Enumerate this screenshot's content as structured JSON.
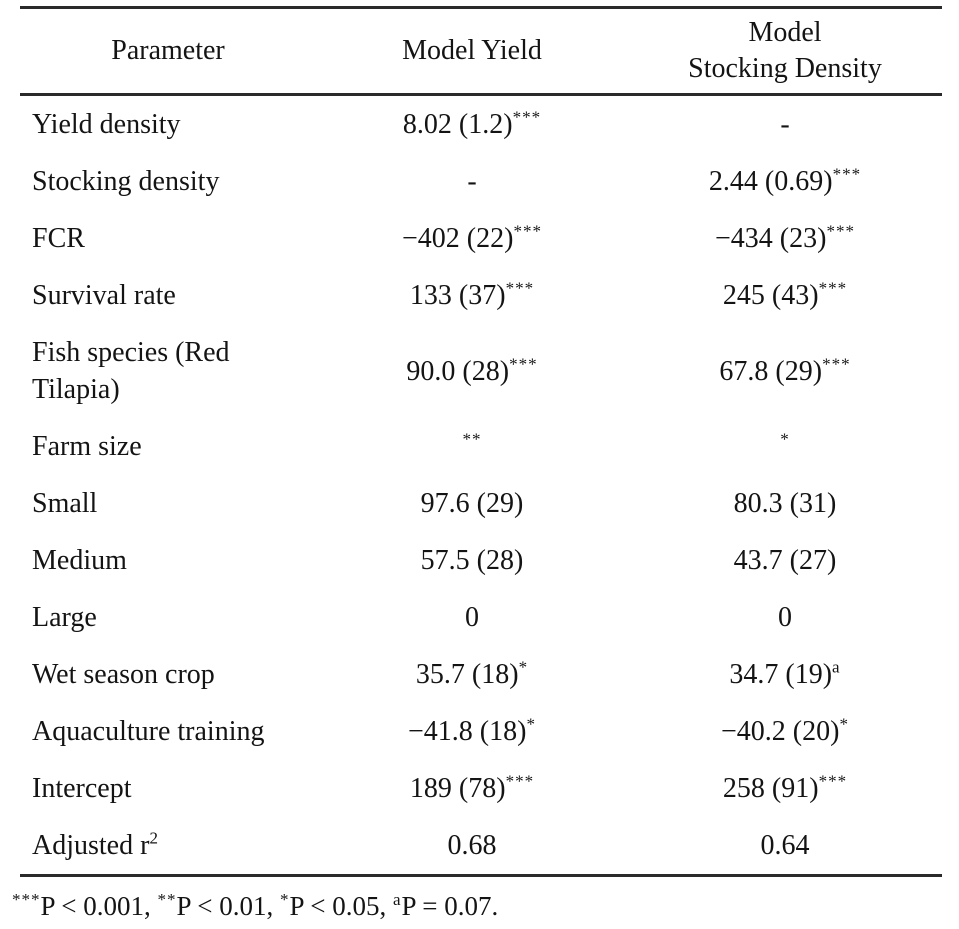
{
  "page": {
    "background": "#ffffff",
    "text_color": "#141414",
    "rule_color": "#2a2a2a"
  },
  "table": {
    "header": {
      "col1": "Parameter",
      "col2": "Model Yield",
      "col3_line1": "Model",
      "col3_line2": "Stocking Density"
    },
    "rows": [
      {
        "param": {
          "text": "Yield density",
          "sup": ""
        },
        "model_yield": {
          "text": "8.02 (1.2)",
          "sup": "***"
        },
        "model_stocking": {
          "text": "-",
          "sup": ""
        }
      },
      {
        "param": {
          "text": "Stocking density",
          "sup": ""
        },
        "model_yield": {
          "text": "-",
          "sup": ""
        },
        "model_stocking": {
          "text": "2.44 (0.69)",
          "sup": "***"
        }
      },
      {
        "param": {
          "text": "FCR",
          "sup": ""
        },
        "model_yield": {
          "text": "−402 (22)",
          "sup": "***"
        },
        "model_stocking": {
          "text": "−434 (23)",
          "sup": "***"
        }
      },
      {
        "param": {
          "text": "Survival rate",
          "sup": ""
        },
        "model_yield": {
          "text": "133 (37)",
          "sup": "***"
        },
        "model_stocking": {
          "text": "245 (43)",
          "sup": "***"
        }
      },
      {
        "param": {
          "text": "Fish species (Red Tilapia)",
          "sup": ""
        },
        "model_yield": {
          "text": "90.0 (28)",
          "sup": "***"
        },
        "model_stocking": {
          "text": "67.8 (29)",
          "sup": "***"
        }
      },
      {
        "param": {
          "text": "Farm size",
          "sup": ""
        },
        "model_yield": {
          "text": "",
          "sup": "**"
        },
        "model_stocking": {
          "text": "",
          "sup": "*"
        }
      },
      {
        "param": {
          "text": "Small",
          "sup": ""
        },
        "model_yield": {
          "text": "97.6 (29)",
          "sup": ""
        },
        "model_stocking": {
          "text": "80.3 (31)",
          "sup": ""
        }
      },
      {
        "param": {
          "text": "Medium",
          "sup": ""
        },
        "model_yield": {
          "text": "57.5 (28)",
          "sup": ""
        },
        "model_stocking": {
          "text": "43.7 (27)",
          "sup": ""
        }
      },
      {
        "param": {
          "text": "Large",
          "sup": ""
        },
        "model_yield": {
          "text": "0",
          "sup": ""
        },
        "model_stocking": {
          "text": "0",
          "sup": ""
        }
      },
      {
        "param": {
          "text": "Wet season crop",
          "sup": ""
        },
        "model_yield": {
          "text": "35.7 (18)",
          "sup": "*"
        },
        "model_stocking": {
          "text": "34.7 (19)",
          "sup": "a"
        }
      },
      {
        "param": {
          "text": "Aquaculture training",
          "sup": ""
        },
        "model_yield": {
          "text": "−41.8 (18)",
          "sup": "*"
        },
        "model_stocking": {
          "text": "−40.2 (20)",
          "sup": "*"
        }
      },
      {
        "param": {
          "text": "Intercept",
          "sup": ""
        },
        "model_yield": {
          "text": "189 (78)",
          "sup": "***"
        },
        "model_stocking": {
          "text": "258 (91)",
          "sup": "***"
        }
      },
      {
        "param": {
          "text": "Adjusted r",
          "sup": "2"
        },
        "model_yield": {
          "text": "0.68",
          "sup": ""
        },
        "model_stocking": {
          "text": "0.64",
          "sup": ""
        }
      }
    ],
    "footnote": {
      "segments": [
        {
          "sup": "***",
          "text": "P < 0.001, "
        },
        {
          "sup": "**",
          "text": "P < 0.01, "
        },
        {
          "sup": "*",
          "text": "P < 0.05, "
        },
        {
          "sup": "a",
          "text": "P = 0.07."
        }
      ]
    }
  }
}
